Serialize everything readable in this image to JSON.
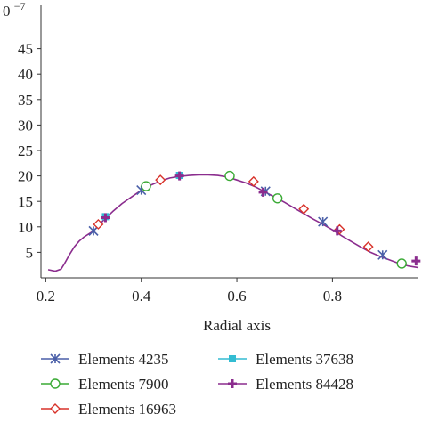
{
  "chart_data": {
    "type": "line",
    "title": "",
    "xlabel": "Radial axis",
    "ylabel": "",
    "y_exponent_label": "0",
    "y_exponent_sup": "−7",
    "xlim": [
      0.19,
      0.98
    ],
    "ylim": [
      0,
      50
    ],
    "x_ticks": [
      0.2,
      0.4,
      0.6,
      0.8
    ],
    "x_tick_labels": [
      "0.2",
      "0.4",
      "0.6",
      "0.8"
    ],
    "y_ticks": [
      5,
      10,
      15,
      20,
      25,
      30,
      35,
      40,
      45
    ],
    "y_tick_labels": [
      "5",
      "10",
      "15",
      "20",
      "25",
      "30",
      "35",
      "40",
      "45"
    ],
    "grid": false,
    "legend_position": "bottom",
    "curve": {
      "x": [
        0.205,
        0.22,
        0.232,
        0.24,
        0.25,
        0.26,
        0.27,
        0.28,
        0.29,
        0.3,
        0.32,
        0.34,
        0.36,
        0.38,
        0.4,
        0.42,
        0.44,
        0.46,
        0.48,
        0.5,
        0.52,
        0.54,
        0.56,
        0.58,
        0.6,
        0.62,
        0.64,
        0.66,
        0.68,
        0.7,
        0.72,
        0.74,
        0.76,
        0.78,
        0.8,
        0.82,
        0.84,
        0.86,
        0.88,
        0.9,
        0.92,
        0.94,
        0.96,
        0.98
      ],
      "y": [
        1.6,
        1.3,
        1.7,
        2.9,
        4.6,
        6.1,
        7.2,
        8.0,
        8.6,
        9.2,
        11.2,
        13.0,
        14.6,
        15.9,
        17.2,
        18.2,
        19.0,
        19.6,
        19.9,
        20.1,
        20.2,
        20.2,
        20.1,
        19.8,
        19.2,
        18.6,
        17.8,
        16.8,
        15.8,
        14.8,
        13.7,
        12.6,
        11.5,
        10.5,
        9.4,
        8.2,
        7.1,
        6.0,
        5.0,
        4.2,
        3.5,
        2.8,
        2.3,
        2.0
      ]
    },
    "series": [
      {
        "name": "Elements 4235",
        "marker": "asterisk",
        "color": "#4a5fa8",
        "x": [
          0.3,
          0.4,
          0.66,
          0.78,
          0.905
        ],
        "y": [
          9.2,
          17.2,
          17.0,
          11.0,
          4.5
        ]
      },
      {
        "name": "Elements 7900",
        "marker": "circle",
        "color": "#3aaa35",
        "x": [
          0.41,
          0.585,
          0.685,
          0.945
        ],
        "y": [
          18.0,
          20.0,
          15.6,
          2.8
        ]
      },
      {
        "name": "Elements 16963",
        "marker": "diamond",
        "color": "#d8322a",
        "x": [
          0.31,
          0.44,
          0.635,
          0.74,
          0.815,
          0.875
        ],
        "y": [
          10.5,
          19.2,
          18.9,
          13.5,
          9.5,
          6.1
        ]
      },
      {
        "name": "Elements 37638",
        "marker": "square",
        "color": "#33bcd2",
        "x": [
          0.325,
          0.48
        ],
        "y": [
          12.0,
          20.1
        ]
      },
      {
        "name": "Elements 84428",
        "marker": "plus",
        "color": "#8b2d8e",
        "x": [
          0.325,
          0.48,
          0.655,
          0.81,
          0.975
        ],
        "y": [
          11.8,
          20.0,
          16.8,
          9.2,
          3.3
        ]
      }
    ]
  }
}
